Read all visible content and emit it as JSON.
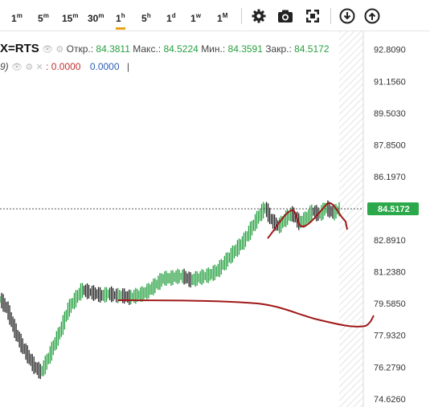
{
  "toolbar": {
    "intervals": [
      {
        "base": "1",
        "sup": "m"
      },
      {
        "base": "5",
        "sup": "m"
      },
      {
        "base": "15",
        "sup": "m"
      },
      {
        "base": "30",
        "sup": "m"
      },
      {
        "base": "1",
        "sup": "h"
      },
      {
        "base": "5",
        "sup": "h"
      },
      {
        "base": "1",
        "sup": "d"
      },
      {
        "base": "1",
        "sup": "w"
      },
      {
        "base": "1",
        "sup": "M"
      }
    ],
    "active_interval": "1h",
    "icons": [
      "settings-icon",
      "camera-icon",
      "fullscreen-icon",
      "download-icon",
      "upload-icon"
    ]
  },
  "legend": {
    "symbol": "X=RTS",
    "open_label": "Откр.:",
    "open": "84.3811",
    "high_label": "Макс.:",
    "high": "84.5224",
    "low_label": "Мин.:",
    "low": "84.3591",
    "close_label": "Закр.:",
    "close": "84.5172",
    "indicator_prefix": "9)",
    "indicator_value1": ": 0.0000",
    "indicator_value2": "0.0000",
    "indicator_cursor": "|"
  },
  "price_tag": "84.5172",
  "colors": {
    "up": "#26a040",
    "down": "#2c5fb3",
    "price_tag_bg": "#2ba84a",
    "annotation": "#a01818",
    "active_interval": "#e8a317"
  },
  "chart_data": {
    "type": "line",
    "y_ticks": [
      "92.8090",
      "91.1560",
      "89.5030",
      "87.8500",
      "86.1970",
      "84.5172",
      "82.8910",
      "81.2380",
      "79.5850",
      "77.9320",
      "76.2790",
      "74.6260"
    ],
    "ylim": [
      74.2,
      93.8
    ],
    "grid": false,
    "last_price": 84.5172,
    "series": [
      {
        "x": [
          0,
          2,
          4,
          6,
          8,
          10,
          12,
          14,
          16,
          18,
          20,
          22,
          24,
          26,
          28,
          30,
          32,
          34,
          36,
          38,
          40,
          42,
          44,
          46,
          48,
          50,
          52,
          54,
          56,
          58,
          60,
          62,
          64,
          66,
          68,
          70,
          72,
          74,
          76,
          78,
          80,
          82,
          84,
          86,
          88,
          90,
          92,
          94,
          96,
          98,
          100
        ],
        "values": [
          79.8,
          79.3,
          78.3,
          77.5,
          76.9,
          76.3,
          76.0,
          76.7,
          77.5,
          78.3,
          79.3,
          79.8,
          80.3,
          80.2,
          80.1,
          80.0,
          80.1,
          80.0,
          80.0,
          79.9,
          80.0,
          80.1,
          80.3,
          80.6,
          80.9,
          80.9,
          81.0,
          81.0,
          80.8,
          80.9,
          81.0,
          81.1,
          81.3,
          81.7,
          82.1,
          82.5,
          82.9,
          83.5,
          84.1,
          84.6,
          83.9,
          83.6,
          84.0,
          84.3,
          83.8,
          84.0,
          84.4,
          84.2,
          84.6,
          84.3,
          84.5172
        ]
      }
    ]
  }
}
